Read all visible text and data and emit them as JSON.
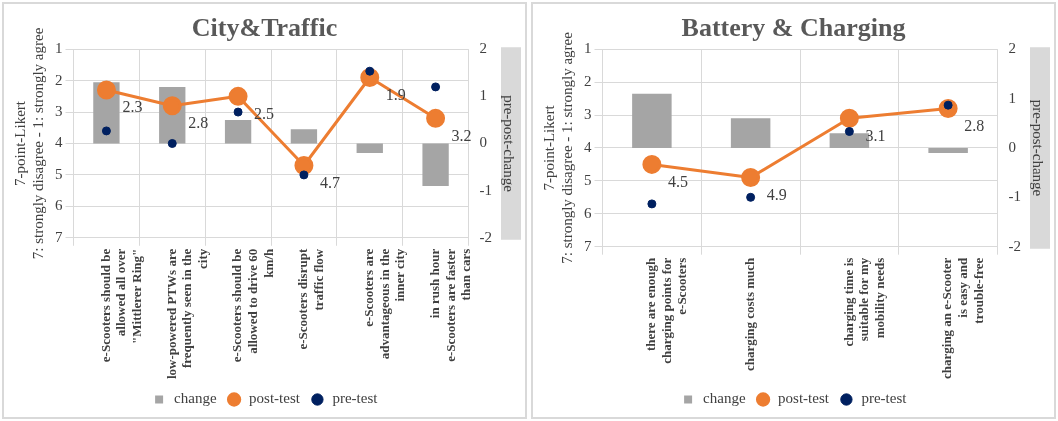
{
  "chart_data": [
    {
      "type": "bar",
      "title": "City&Traffic",
      "ylabel": "7-point-Likert\n7: strongly disagree - 1: strongly agree",
      "y2label": "pre-post-change",
      "categories": [
        "e-Scooters should be allowed all over \"Mittlerer Ring\"",
        "low-powered PTWs are frequently seen in the city",
        "e-Scooters should be allowed to drive 60 km/h",
        "e-Scooters disrupt traffic flow",
        "e-Scooters are advantageous in the inner city",
        "in rush hour e-Scooters are faster than cars"
      ],
      "series": [
        {
          "name": "change",
          "axis": "y2",
          "color": "#a5a5a5",
          "values": [
            1.3,
            1.2,
            0.5,
            0.3,
            -0.2,
            -0.9
          ]
        },
        {
          "name": "post-test",
          "type": "line",
          "color": "#ed7d31",
          "values": [
            2.3,
            2.8,
            2.5,
            4.7,
            1.9,
            3.2
          ],
          "value_labels": [
            "2.3",
            "2.8",
            "2.5",
            "4.7",
            "1.9",
            "3.2"
          ]
        },
        {
          "name": "pre-test",
          "type": "scatter",
          "color": "#002060",
          "values": [
            3.6,
            4.0,
            3.0,
            5.0,
            1.7,
            2.2
          ]
        }
      ],
      "ylim": [
        7,
        1
      ],
      "yticks": [
        1,
        2,
        3,
        4,
        5,
        6,
        7
      ],
      "y2lim": [
        -2,
        2
      ],
      "y2ticks": [
        2,
        1,
        0,
        -1,
        -2
      ],
      "grid": true,
      "legend": "bottom",
      "marker": "circle"
    },
    {
      "type": "bar",
      "title": "Battery & Charging",
      "ylabel": "7-point-Likert\n7: strongly disagree - 1: strongly agree",
      "y2label": "pre-post-change",
      "categories": [
        "there are enough charging points for e-Scooters",
        "charging costs much",
        "charging time is suitable for my mobility needs",
        "charging an e-Scooter is easy and trouble-free"
      ],
      "series": [
        {
          "name": "change",
          "axis": "y2",
          "color": "#a5a5a5",
          "values": [
            1.1,
            0.6,
            0.3,
            -0.1
          ]
        },
        {
          "name": "post-test",
          "type": "line",
          "color": "#ed7d31",
          "values": [
            4.5,
            4.9,
            3.1,
            2.8
          ],
          "value_labels": [
            "4.5",
            "4.9",
            "3.1",
            "2.8"
          ]
        },
        {
          "name": "pre-test",
          "type": "scatter",
          "color": "#002060",
          "values": [
            5.7,
            5.5,
            3.5,
            2.7
          ]
        }
      ],
      "ylim": [
        7,
        1
      ],
      "yticks": [
        1,
        2,
        3,
        4,
        5,
        6,
        7
      ],
      "y2lim": [
        -2,
        2
      ],
      "y2ticks": [
        2,
        1,
        0,
        -1,
        -2
      ],
      "grid": true,
      "legend": "bottom",
      "marker": "circle"
    }
  ]
}
